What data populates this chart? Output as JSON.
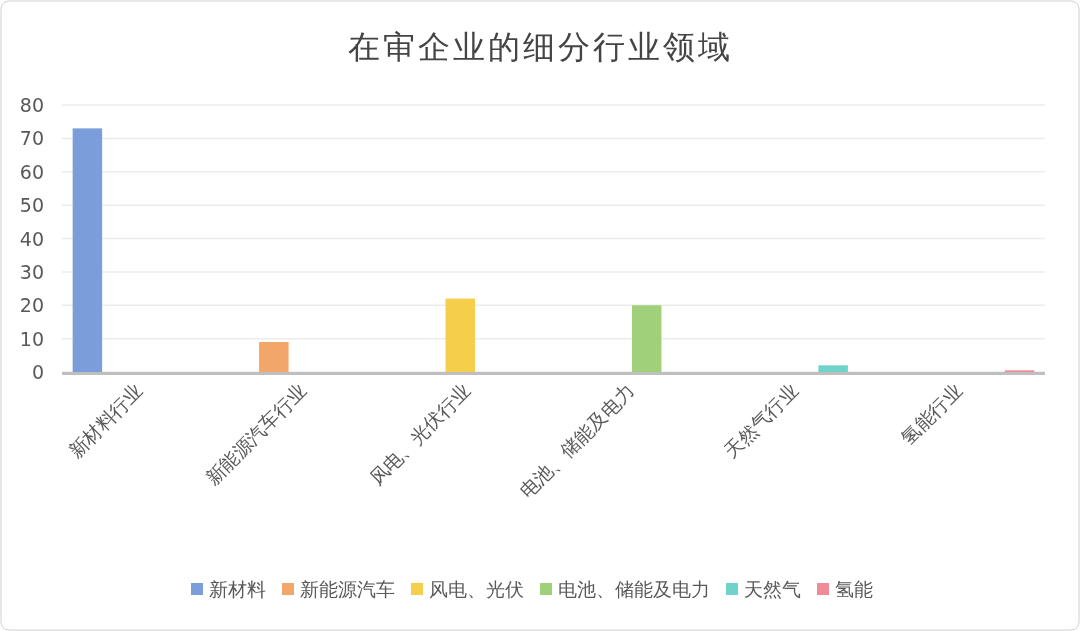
{
  "chart_data": {
    "type": "bar",
    "title": "在审企业的细分行业领域",
    "categories": [
      "新材料行业",
      "新能源汽车行业",
      "风电、光伏行业",
      "电池、储能及电力",
      "天然气行业",
      "氢能行业"
    ],
    "series": [
      {
        "name": "新材料",
        "color": "#7b9edb",
        "values": [
          73,
          null,
          null,
          null,
          null,
          null
        ]
      },
      {
        "name": "新能源汽车",
        "color": "#f2a66a",
        "values": [
          null,
          9,
          null,
          null,
          null,
          null
        ]
      },
      {
        "name": "风电、光伏",
        "color": "#f5ce4c",
        "values": [
          null,
          null,
          22,
          null,
          null,
          null
        ]
      },
      {
        "name": "电池、储能及电力",
        "color": "#a0d07a",
        "values": [
          null,
          null,
          null,
          20,
          null,
          null
        ]
      },
      {
        "name": "天然气",
        "color": "#6fd3cb",
        "values": [
          null,
          null,
          null,
          null,
          2,
          null
        ]
      },
      {
        "name": "氢能",
        "color": "#ef8a96",
        "values": [
          null,
          null,
          null,
          null,
          null,
          0.5
        ]
      }
    ],
    "ylim": [
      0,
      80
    ],
    "yticks": [
      0,
      10,
      20,
      30,
      40,
      50,
      60,
      70,
      80
    ],
    "grid": "y",
    "legend": "bottom"
  }
}
